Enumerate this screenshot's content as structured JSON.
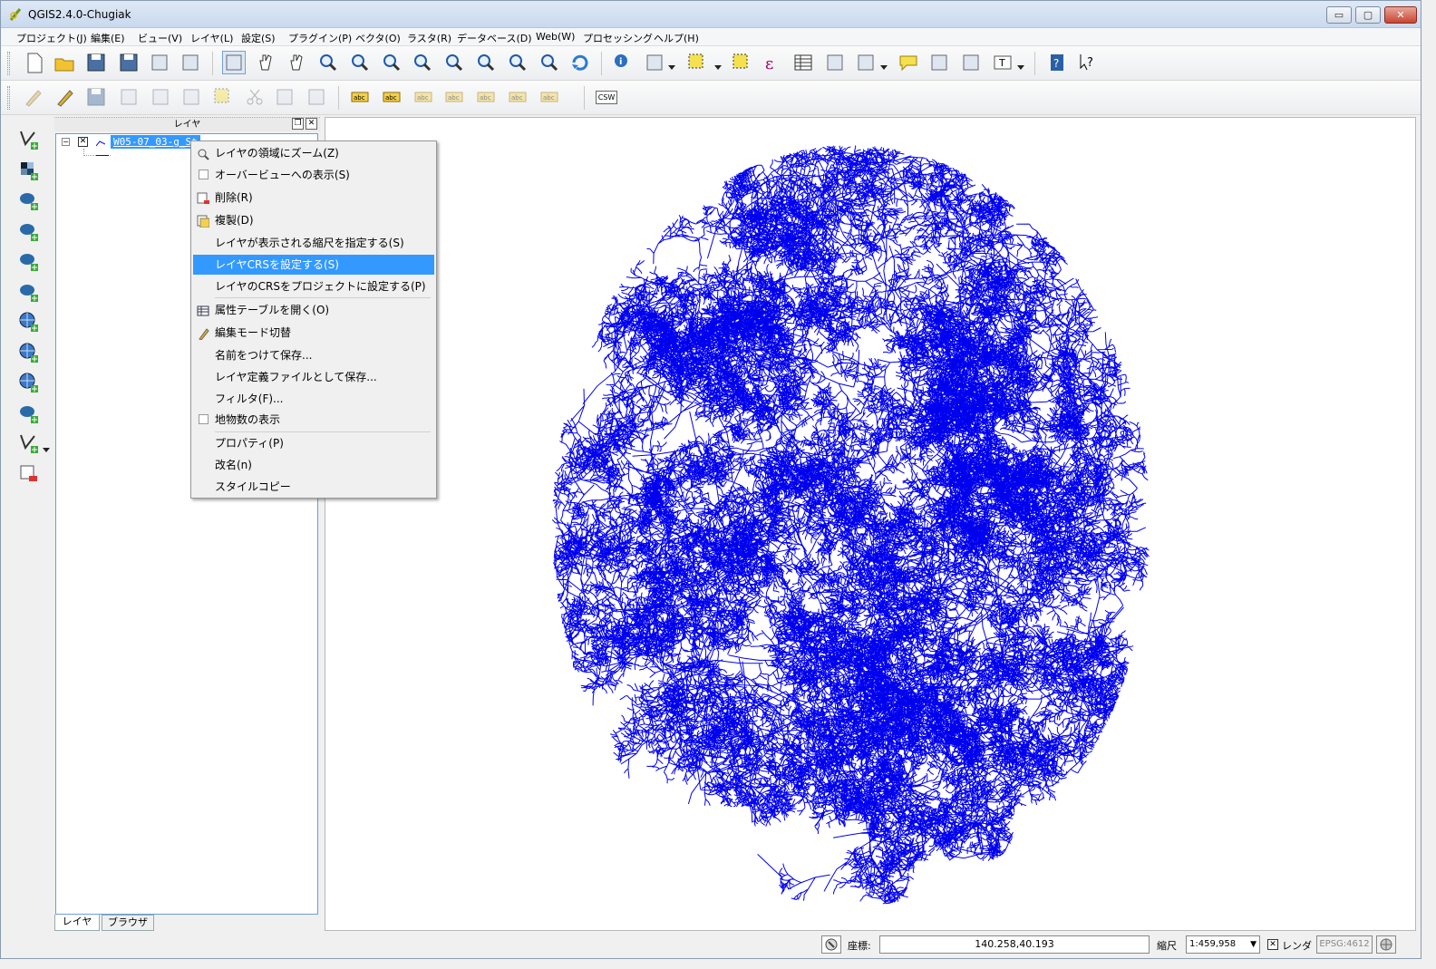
{
  "window": {
    "title": "QGIS2.4.0-Chugiak"
  },
  "window_buttons": {
    "minimize": "▭",
    "maximize": "▢",
    "close": "✕"
  },
  "menubar": [
    {
      "label": "プロジェクト(J)"
    },
    {
      "label": "編集(E)"
    },
    {
      "label": "ビュー(V)"
    },
    {
      "label": "レイヤ(L)"
    },
    {
      "label": "設定(S)"
    },
    {
      "label": "プラグイン(P)"
    },
    {
      "label": "ベクタ(O)"
    },
    {
      "label": "ラスタ(R)"
    },
    {
      "label": "データベース(D)"
    },
    {
      "label": "Web(W)"
    },
    {
      "label": "プロセッシング"
    },
    {
      "label": "ヘルプ(H)"
    }
  ],
  "toolbar_row1": [
    "new-project-icon",
    "open-project-icon",
    "save-project-icon",
    "save-as-icon",
    "new-print-composer-icon",
    "composer-manager-icon",
    "touch-icon",
    "pan-icon",
    "pan-to-selection-icon",
    "zoom-in-icon",
    "zoom-out-icon",
    "zoom-actual-icon",
    "zoom-full-icon",
    "zoom-to-selection-icon",
    "zoom-to-layer-icon",
    "zoom-last-icon",
    "zoom-next-icon",
    "refresh-icon",
    "identify-icon",
    "run-action-icon",
    "select-features-icon",
    "deselect-icon",
    "field-calculator-icon",
    "attribute-table-icon",
    "statistics-icon",
    "measure-icon",
    "map-tips-icon",
    "new-bookmark-icon",
    "show-bookmarks-icon",
    "text-annotation-icon",
    "help-icon",
    "whats-this-icon"
  ],
  "toolbar_row2": [
    "current-edits-icon",
    "toggle-editing-icon",
    "save-edits-icon",
    "add-feature-icon",
    "move-feature-icon",
    "node-tool-icon",
    "delete-selected-icon",
    "cut-features-icon",
    "copy-features-icon",
    "paste-features-icon",
    "label-icon",
    "pin-labels-icon",
    "highlight-pinned-icon",
    "show-hide-labels-icon",
    "move-label-icon",
    "rotate-label-icon",
    "change-label-icon",
    "csw-icon"
  ],
  "csw_label": "CSW",
  "leftbar": [
    "add-vector-layer-icon",
    "add-raster-layer-icon",
    "add-postgis-layer-icon",
    "add-spatialite-layer-icon",
    "add-mssql-layer-icon",
    "add-oracle-layer-icon",
    "add-wms-layer-icon",
    "add-wcs-layer-icon",
    "add-wfs-layer-icon",
    "add-delimited-text-icon",
    "new-shapefile-icon",
    "remove-layer-icon"
  ],
  "layer_panel": {
    "title": "レイヤ",
    "layer_name": "W05-07_03-g_St",
    "tabs": [
      {
        "label": "レイヤ"
      },
      {
        "label": "ブラウザ"
      }
    ]
  },
  "context_menu": [
    {
      "label": "レイヤの領域にズーム(Z)",
      "icon": "zoom-to-layer-icon"
    },
    {
      "label": "オーバービューへの表示(S)",
      "icon": "checkbox"
    },
    {
      "label": "削除(R)",
      "icon": "remove-icon"
    },
    {
      "label": "複製(D)",
      "icon": "duplicate-icon"
    },
    {
      "label": "レイヤが表示される縮尺を指定する(S)",
      "icon": ""
    },
    {
      "label": "レイヤCRSを設定する(S)",
      "icon": "",
      "highlighted": true
    },
    {
      "label": "レイヤのCRSをプロジェクトに設定する(P)",
      "icon": ""
    },
    {
      "label": "属性テーブルを開く(O)",
      "icon": "table-icon"
    },
    {
      "label": "編集モード切替",
      "icon": "pencil-icon"
    },
    {
      "label": "名前をつけて保存...",
      "icon": ""
    },
    {
      "label": "レイヤ定義ファイルとして保存...",
      "icon": ""
    },
    {
      "label": "フィルタ(F)...",
      "icon": ""
    },
    {
      "label": "地物数の表示",
      "icon": "checkbox"
    },
    {
      "label": "プロパティ(P)",
      "icon": ""
    },
    {
      "label": "改名(n)",
      "icon": ""
    },
    {
      "label": "スタイルコピー",
      "icon": ""
    }
  ],
  "map": {
    "line_color": "#0000ee",
    "layer": "rivers"
  },
  "statusbar": {
    "coord_label": "座標:",
    "coord_value": "140.258,40.193",
    "scale_label": "縮尺",
    "scale_value": "1:459,958",
    "render_label": "レンダ",
    "crs": "EPSG:4612"
  }
}
